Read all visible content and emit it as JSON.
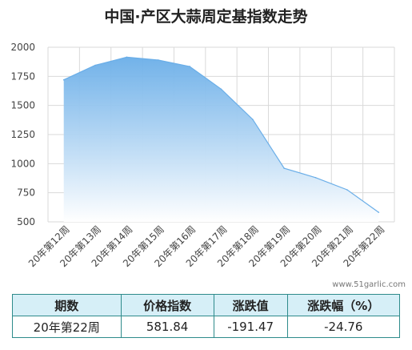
{
  "title": "中国·产区大蒜周定基指数走势",
  "watermark": "www.51garlic.com",
  "chart_data": {
    "type": "area",
    "title": "中国·产区大蒜周定基指数走势",
    "categories": [
      "20年第12周",
      "20年第13周",
      "20年第14周",
      "20年第15周",
      "20年第16周",
      "20年第17周",
      "20年第18周",
      "20年第19周",
      "20年第20周",
      "20年第21周",
      "20年第22周"
    ],
    "values": [
      1720,
      1845,
      1915,
      1890,
      1835,
      1640,
      1380,
      960,
      880,
      775,
      582
    ],
    "ylim": [
      500,
      2000
    ],
    "yticks": [
      500,
      750,
      1000,
      1250,
      1500,
      1750,
      2000
    ],
    "grid": true,
    "xlabel": "",
    "ylabel": ""
  },
  "table": {
    "headers": [
      "期数",
      "价格指数",
      "涨跌值",
      "涨跌幅（%）"
    ],
    "row": [
      "20年第22周",
      "581.84",
      "-191.47",
      "-24.76"
    ]
  }
}
